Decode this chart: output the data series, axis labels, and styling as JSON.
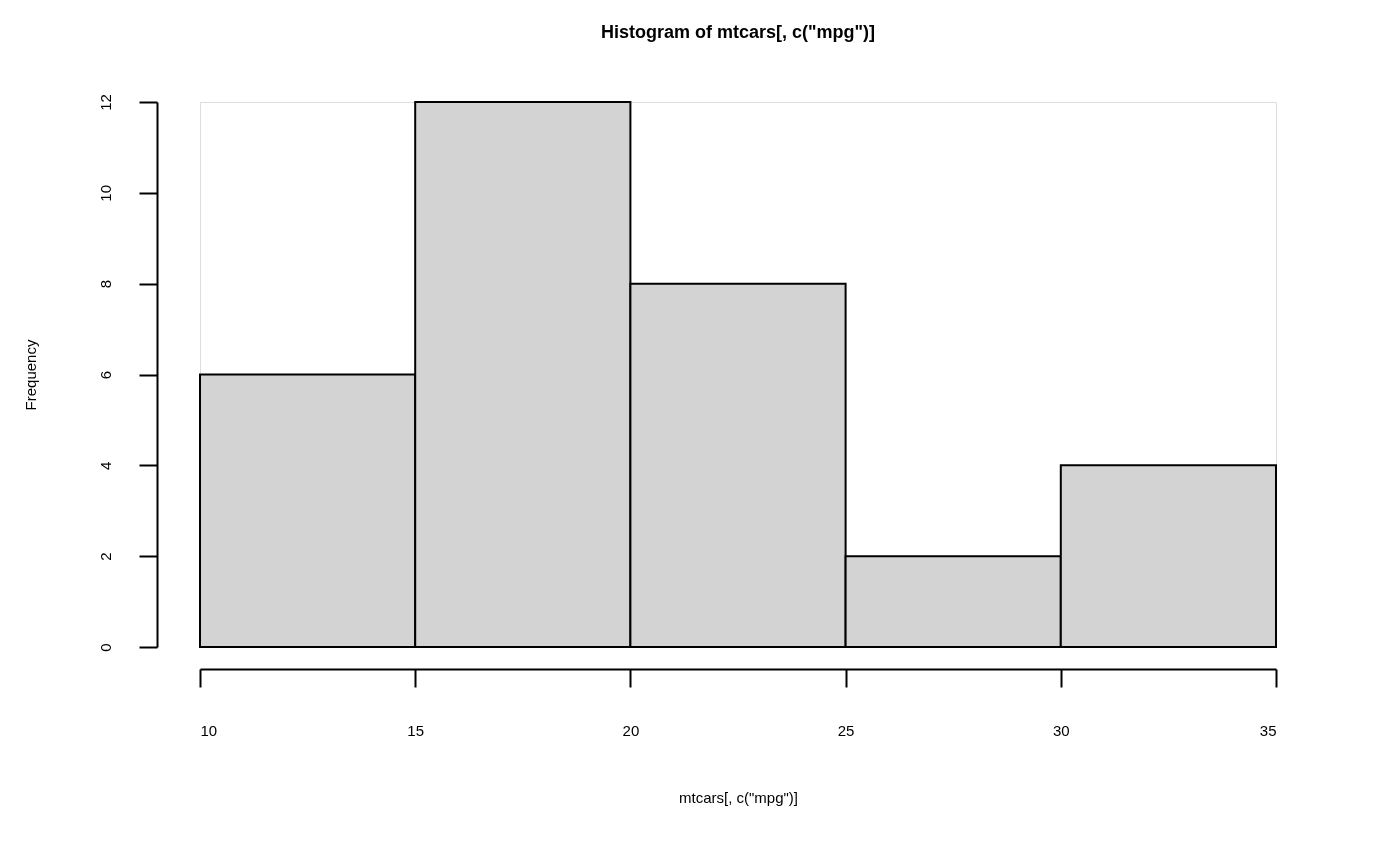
{
  "chart_data": {
    "type": "histogram",
    "title": "Histogram of mtcars[, c(\"mpg\")]",
    "xlabel": "mtcars[, c(\"mpg\")]",
    "ylabel": "Frequency",
    "bins": [
      10,
      15,
      20,
      25,
      30,
      35
    ],
    "values": [
      6,
      12,
      8,
      2,
      4
    ],
    "color": "#d3d3d3",
    "xlim": [
      10,
      35
    ],
    "xticks": [
      10,
      15,
      20,
      25,
      30,
      35
    ],
    "ylim": [
      0,
      12
    ],
    "yticks": [
      0,
      2,
      4,
      6,
      8,
      10,
      12
    ],
    "grid": false
  }
}
